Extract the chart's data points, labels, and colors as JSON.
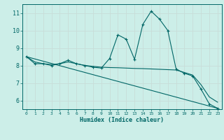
{
  "xlabel": "Humidex (Indice chaleur)",
  "bg_color": "#cceee8",
  "grid_color": "#aaddcc",
  "line_color": "#006666",
  "xlim": [
    -0.5,
    23.5
  ],
  "ylim": [
    5.5,
    11.5
  ],
  "xticks": [
    0,
    1,
    2,
    3,
    4,
    5,
    6,
    7,
    8,
    9,
    10,
    11,
    12,
    13,
    14,
    15,
    16,
    17,
    18,
    19,
    20,
    21,
    22,
    23
  ],
  "yticks": [
    6,
    7,
    8,
    9,
    10,
    11
  ],
  "curve1_x": [
    0,
    1,
    2,
    3,
    4,
    5,
    6,
    7,
    8,
    9,
    10,
    11,
    12,
    13,
    14,
    15,
    16,
    17,
    18,
    19,
    20,
    21,
    22,
    23
  ],
  "curve1_y": [
    8.5,
    8.1,
    8.1,
    8.0,
    8.1,
    8.3,
    8.1,
    8.0,
    7.9,
    7.85,
    8.4,
    9.75,
    9.5,
    8.35,
    10.35,
    11.1,
    10.65,
    10.0,
    7.8,
    7.55,
    7.4,
    6.65,
    5.8,
    5.55
  ],
  "curve2_x": [
    0,
    1,
    2,
    3,
    4,
    5,
    6,
    7,
    8,
    9,
    10,
    11,
    12,
    13,
    14,
    15,
    16,
    17,
    18,
    19,
    20,
    21,
    22,
    23
  ],
  "curve2_y": [
    8.5,
    8.2,
    8.1,
    8.05,
    8.1,
    8.2,
    8.1,
    8.0,
    7.95,
    7.9,
    7.88,
    7.87,
    7.85,
    7.83,
    7.82,
    7.8,
    7.78,
    7.76,
    7.74,
    7.6,
    7.45,
    6.9,
    6.2,
    5.9
  ],
  "curve3_x": [
    0,
    23
  ],
  "curve3_y": [
    8.5,
    5.55
  ]
}
